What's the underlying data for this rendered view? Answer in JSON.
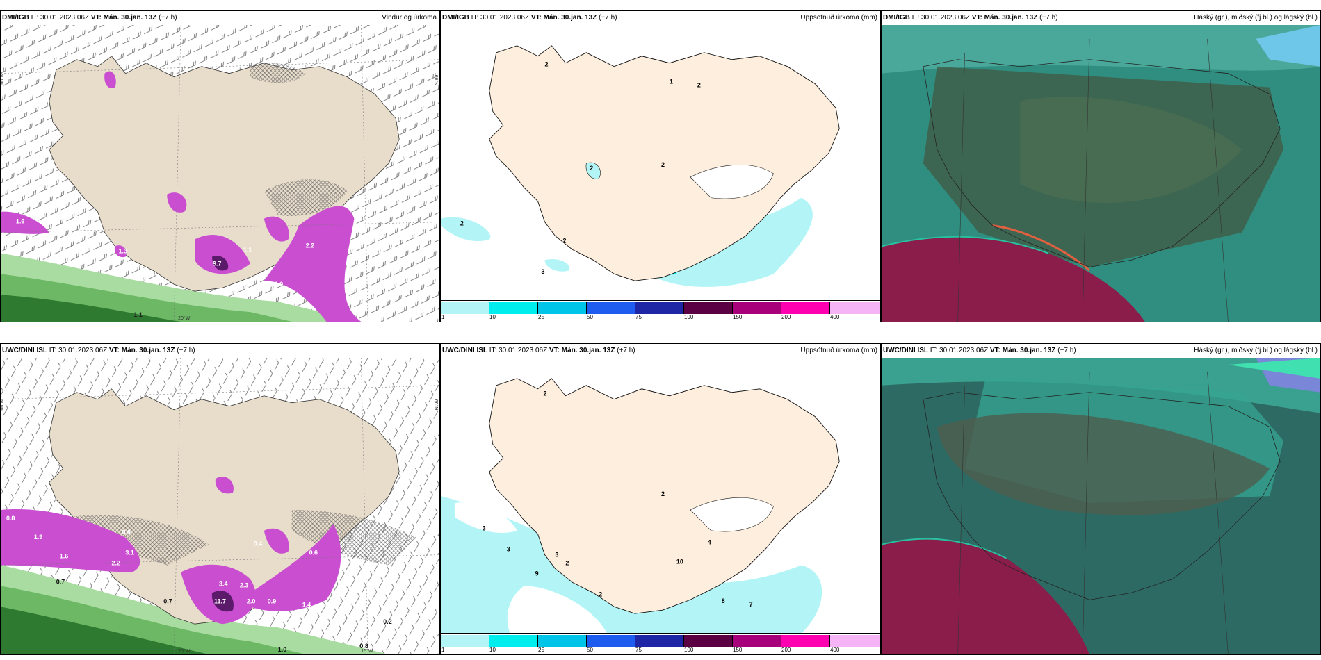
{
  "panels": [
    {
      "source": "DMI/IGB",
      "it": "IT: 30.01.2023 06Z",
      "vt_label": "VT:",
      "vt_value": "Mán. 30.jan. 13Z",
      "lead": "(+7 h)",
      "title": "Vindur og úrkoma",
      "kind": "wind"
    },
    {
      "source": "DMI/IGB",
      "it": "IT: 30.01.2023 06Z",
      "vt_label": "VT:",
      "vt_value": "Mán. 30.jan. 13Z",
      "lead": "(+7 h)",
      "title": "Uppsöfnuð úrkoma (mm)",
      "kind": "accum"
    },
    {
      "source": "DMI/IGB",
      "it": "IT: 30.01.2023 06Z",
      "vt_label": "VT:",
      "vt_value": "Mán. 30.jan. 13Z",
      "lead": "(+7 h)",
      "title": "Háský (gr.), miðský (fj.bl.) og lágský (bl.)",
      "kind": "cloud"
    },
    {
      "source": "UWC/DINI ISL",
      "it": "IT: 30.01.2023 06Z",
      "vt_label": "VT:",
      "vt_value": "Mán. 30.jan. 13Z",
      "lead": "(+7 h)",
      "title": "",
      "kind": "wind"
    },
    {
      "source": "UWC/DINI ISL",
      "it": "IT: 30.01.2023 06Z",
      "vt_label": "VT:",
      "vt_value": "Mán. 30.jan. 13Z",
      "lead": "(+7 h)",
      "title": "Uppsöfnuð úrkoma (mm)",
      "kind": "accum"
    },
    {
      "source": "UWC/DINI ISL",
      "it": "IT: 30.01.2023 06Z",
      "vt_label": "VT:",
      "vt_value": "Mán. 30.jan. 13Z",
      "lead": "(+7 h)",
      "title": "Háský (gr.), miðský (fj.bl.) og lágský (bl.)",
      "kind": "cloud"
    }
  ],
  "colorbar": {
    "colors": [
      "#b3f5f7",
      "#00eded",
      "#00c4e8",
      "#1e5cf0",
      "#1f26a6",
      "#5c0044",
      "#a8007a",
      "#ff00b0",
      "#f5b4f5"
    ],
    "ticks": [
      "1",
      "10",
      "25",
      "50",
      "75",
      "100",
      "150",
      "200",
      "400"
    ]
  },
  "lat_labels": {
    "n66": "66°N",
    "n65": "65°N",
    "w20": "20°W",
    "w15": "15°W"
  },
  "wind_values": {
    "top": [
      "1.6",
      "1.3",
      "9.7",
      "1.0",
      "1.1",
      "2.2",
      "1.1"
    ],
    "bottom": [
      "0.8",
      "1.9",
      "1.6",
      "2.2",
      "3.1",
      "0.7",
      "0.6",
      "3.4",
      "2.3",
      "11.7",
      "2.0",
      "0.9",
      "1.4",
      "0.4",
      "0.6",
      "0.7",
      "0.2",
      "0.8",
      "1.0"
    ]
  },
  "accum_values": {
    "top": [
      "2",
      "1",
      "2",
      "2",
      "2",
      "2",
      "3",
      "2"
    ],
    "bottom": [
      "2",
      "3",
      "3",
      "3",
      "2",
      "9",
      "2",
      "10",
      "8",
      "7",
      "4",
      "2"
    ]
  },
  "colors": {
    "land": "#e8dccb",
    "land_accum": "#fdeedd",
    "precip_magenta": "#c94fd0",
    "precip_dark": "#5b1a6a",
    "green_dark": "#2e7a30",
    "green_light": "#a9dca0",
    "cloud_teal": "#2f8e7f",
    "cloud_dark": "#3f5f4a",
    "cloud_red": "#8a1d4a"
  }
}
